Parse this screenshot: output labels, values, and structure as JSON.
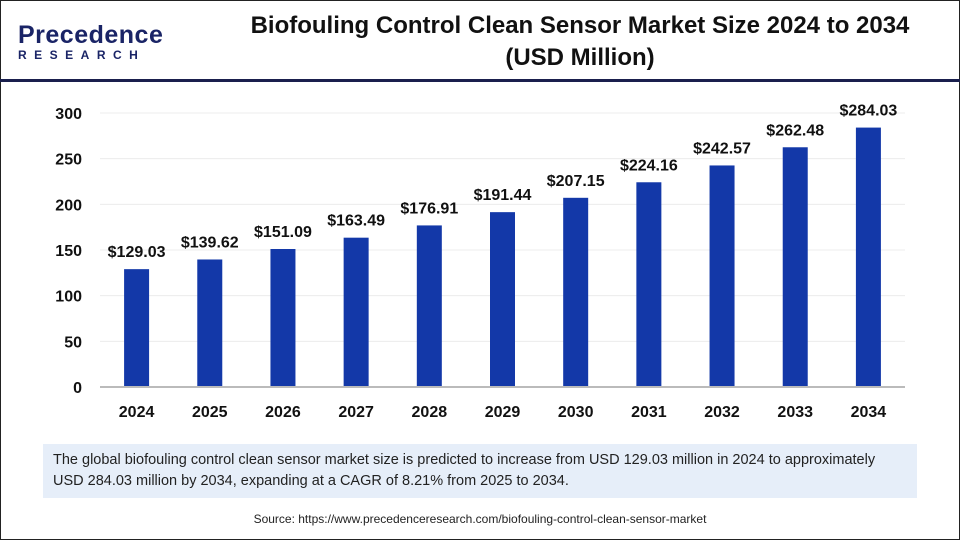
{
  "logo": {
    "line1": "Precedence",
    "line2": "RESEARCH"
  },
  "header": {
    "title_line1": "Biofouling Control Clean Sensor Market Size 2024 to 2034",
    "title_line2": "(USD Million)"
  },
  "chart_data": {
    "type": "bar",
    "categories": [
      "2024",
      "2025",
      "2026",
      "2027",
      "2028",
      "2029",
      "2030",
      "2031",
      "2032",
      "2033",
      "2034"
    ],
    "values": [
      129.03,
      139.62,
      151.09,
      163.49,
      176.91,
      191.44,
      207.15,
      224.16,
      242.57,
      262.48,
      284.03
    ],
    "data_labels": [
      "$129.03",
      "$139.62",
      "$151.09",
      "$163.49",
      "$176.91",
      "$191.44",
      "$207.15",
      "$224.16",
      "$242.57",
      "$262.48",
      "$284.03"
    ],
    "ylim": [
      0,
      300
    ],
    "yticks": [
      0,
      50,
      100,
      150,
      200,
      250,
      300
    ],
    "grid": true,
    "bar_color": "#1338a8",
    "xlabel": "",
    "ylabel": ""
  },
  "note": "The global biofouling control clean sensor market size is predicted to increase from USD 129.03 million in 2024 to approximately USD 284.03 million by 2034, expanding at a CAGR of 8.21% from 2025 to 2034.",
  "source": "Source: https://www.precedenceresearch.com/biofouling-control-clean-sensor-market"
}
